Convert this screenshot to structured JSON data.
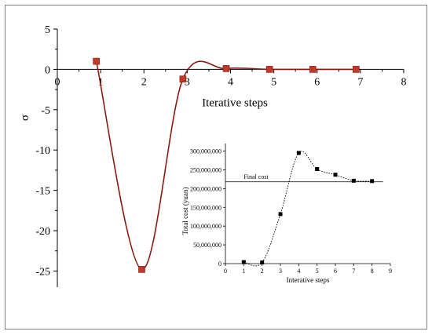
{
  "chart_data": [
    {
      "id": "main",
      "type": "line",
      "xlabel": "Iterative steps",
      "ylabel": "σ",
      "xlim": [
        0,
        8
      ],
      "ylim": [
        -27,
        5
      ],
      "x_ticks": [
        0,
        1,
        2,
        3,
        4,
        5,
        6,
        7,
        8
      ],
      "y_ticks": [
        5,
        0,
        -5,
        -10,
        -15,
        -20,
        -25
      ],
      "grid": false,
      "series": [
        {
          "line_color": "#8b1a0e",
          "marker_color": "#c0392b",
          "marker": "square",
          "points": [
            [
              0.9,
              1.0
            ],
            [
              1.95,
              -24.8
            ],
            [
              2.9,
              -1.2
            ],
            [
              3.9,
              0.1
            ],
            [
              4.9,
              0.0
            ],
            [
              5.9,
              0.0
            ],
            [
              6.9,
              0.0
            ]
          ]
        }
      ]
    },
    {
      "id": "inset",
      "type": "line",
      "xlabel": "Interative steps",
      "ylabel": "Total cost (yuan)",
      "xlim": [
        0,
        9
      ],
      "ylim": [
        0,
        320000000
      ],
      "x_ticks": [
        0,
        1,
        2,
        3,
        4,
        5,
        6,
        7,
        8,
        9
      ],
      "y_ticks": [
        "0",
        "50,000,000",
        "100,000,000",
        "150,000,000",
        "200,000,000",
        "250,000,000",
        "300,000,000"
      ],
      "y_tick_values": [
        0,
        50000000,
        100000000,
        150000000,
        200000000,
        250000000,
        300000000
      ],
      "grid": false,
      "reference_line": {
        "label": "Final cost",
        "value": 218000000
      },
      "series": [
        {
          "line_color": "#000000",
          "line_style": "dotted",
          "marker": "square",
          "points": [
            [
              1,
              4000000
            ],
            [
              2,
              3000000
            ],
            [
              3,
              132000000
            ],
            [
              4,
              295000000
            ],
            [
              5,
              252000000
            ],
            [
              6,
              237000000
            ],
            [
              7,
              221000000
            ],
            [
              8,
              220000000
            ]
          ]
        }
      ]
    }
  ]
}
